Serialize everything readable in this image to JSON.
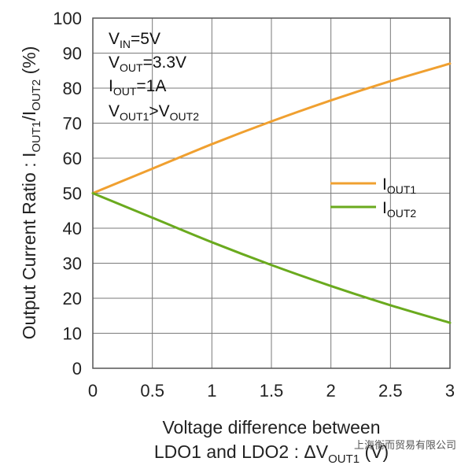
{
  "chart_data": {
    "type": "line",
    "title": "",
    "xlabel_line1": "Voltage difference between",
    "xlabel_line2_prefix": "LDO1 and LDO2 : ΔV",
    "xlabel_line2_sub": "OUT1",
    "xlabel_line2_suffix": " (V)",
    "ylabel": {
      "prefix": "Output Current Ratio : I",
      "sub1": "OUT1",
      "mid": "/I",
      "sub2": "OUT2",
      "suffix": " (%)"
    },
    "xlim": [
      0,
      3
    ],
    "ylim": [
      0,
      100
    ],
    "xticks": [
      0,
      0.5,
      1,
      1.5,
      2,
      2.5,
      3
    ],
    "xtick_labels": [
      "0",
      "0.5",
      "1",
      "1.5",
      "2",
      "2.5",
      "3"
    ],
    "yticks": [
      0,
      10,
      20,
      30,
      40,
      50,
      60,
      70,
      80,
      90,
      100
    ],
    "ytick_labels": [
      "0",
      "10",
      "20",
      "30",
      "40",
      "50",
      "60",
      "70",
      "80",
      "90",
      "100"
    ],
    "grid": true,
    "legend_position": "right",
    "series": [
      {
        "name": "IOUT1",
        "name_main": "I",
        "name_sub": "OUT1",
        "color": "#f0a030",
        "x": [
          0,
          0.5,
          1,
          1.5,
          2,
          2.5,
          3
        ],
        "values": [
          50,
          57,
          64,
          70.5,
          76.5,
          82,
          87
        ]
      },
      {
        "name": "IOUT2",
        "name_main": "I",
        "name_sub": "OUT2",
        "color": "#6aaa1e",
        "x": [
          0,
          0.5,
          1,
          1.5,
          2,
          2.5,
          3
        ],
        "values": [
          50,
          43,
          36,
          29.5,
          23.5,
          18,
          13
        ]
      }
    ],
    "annotations": [
      {
        "main": "V",
        "sub": "IN",
        "rest": "=5V"
      },
      {
        "main": "V",
        "sub": "OUT",
        "rest": "=3.3V"
      },
      {
        "main": "I",
        "sub": "OUT",
        "rest": "=1A"
      },
      {
        "main": "V",
        "sub": "OUT1",
        "rest": ">V",
        "sub2": "OUT2"
      }
    ]
  },
  "watermark": "上海衡而贸易有限公司",
  "colors": {
    "grid": "#7a7a7a",
    "frame": "#555555"
  }
}
